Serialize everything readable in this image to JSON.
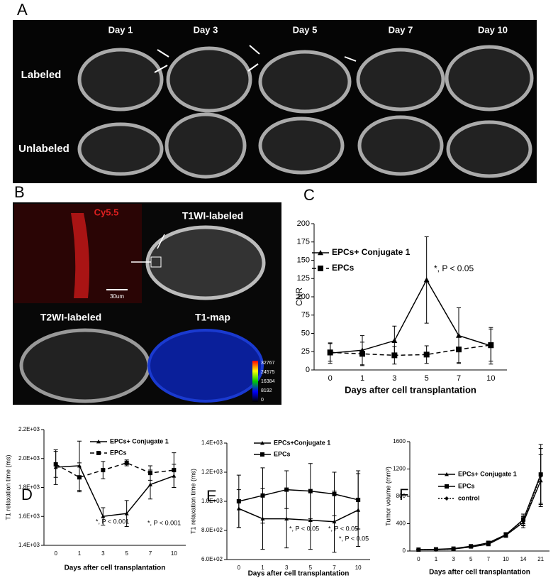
{
  "panel_a": {
    "label": "A",
    "columns": [
      "Day 1",
      "Day 3",
      "Day 5",
      "Day 7",
      "Day 10"
    ],
    "rows": [
      "Labeled",
      "Unlabeled"
    ]
  },
  "panel_b": {
    "label": "B",
    "quadrants": [
      "Cy5.5",
      "T1WI-labeled",
      "T2WI-labeled",
      "T1-map"
    ],
    "scale_bar": "30um",
    "colorbar": [
      "32767",
      "24575",
      "16384",
      "8192",
      "0"
    ]
  },
  "chart_data": [
    {
      "type": "line",
      "label": "C",
      "y_label": "CNR",
      "x_label": "Days after cell transplantation",
      "categories": [
        "0",
        "1",
        "3",
        "5",
        "7",
        "10"
      ],
      "ylim": [
        0,
        200
      ],
      "yticks": [
        0,
        25,
        50,
        75,
        100,
        125,
        150,
        175,
        200
      ],
      "series": [
        {
          "name": "EPCs+ Conjugate 1",
          "color": "#000000",
          "marker": "triangle",
          "line_style": "solid",
          "values": [
            23,
            27,
            40,
            123,
            47,
            33
          ],
          "errors": [
            14,
            20,
            20,
            59,
            38,
            25
          ]
        },
        {
          "name": "EPCs",
          "color": "#000000",
          "marker": "square",
          "line_style": "dashed",
          "values": [
            24,
            22,
            20,
            21,
            28,
            34
          ],
          "errors": [
            12,
            16,
            12,
            12,
            18,
            22
          ]
        }
      ],
      "annotations": [
        "*, P < 0.05"
      ]
    },
    {
      "type": "line",
      "label": "D",
      "y_label": "T1 relaxation time (ms)",
      "x_label": "Days after cell transplantation",
      "categories": [
        "0",
        "1",
        "3",
        "5",
        "7",
        "10"
      ],
      "ylim": [
        1400,
        2200
      ],
      "yticks": [
        {
          "value": 1400,
          "label": "1.4E+03"
        },
        {
          "value": 1600,
          "label": "1.6E+03"
        },
        {
          "value": 1800,
          "label": "1.8E+03"
        },
        {
          "value": 2000,
          "label": "2.0E+03"
        },
        {
          "value": 2200,
          "label": "2.2E+03"
        }
      ],
      "series": [
        {
          "name": "EPCs+ Conjugate 1",
          "color": "#000000",
          "marker": "triangle",
          "line_style": "solid",
          "values": [
            1940,
            1950,
            1600,
            1620,
            1820,
            1880
          ],
          "errors": [
            120,
            170,
            60,
            90,
            100,
            80
          ]
        },
        {
          "name": "EPCs",
          "color": "#000000",
          "marker": "square",
          "line_style": "dashed",
          "values": [
            1960,
            1870,
            1920,
            1970,
            1900,
            1920
          ],
          "errors": [
            90,
            100,
            60,
            20,
            50,
            120
          ]
        }
      ],
      "annotations": [
        "*, P < 0.001",
        "*, P < 0.001"
      ]
    },
    {
      "type": "line",
      "label": "E",
      "y_label": "T1 relaxation time (ms)",
      "x_label": "Days after cell transplantation",
      "categories": [
        "0",
        "1",
        "3",
        "5",
        "7",
        "10"
      ],
      "ylim": [
        600,
        1400
      ],
      "yticks": [
        {
          "value": 600,
          "label": "6.0E+02"
        },
        {
          "value": 800,
          "label": "8.0E+02"
        },
        {
          "value": 1000,
          "label": "1.0E+03"
        },
        {
          "value": 1200,
          "label": "1.2E+03"
        },
        {
          "value": 1400,
          "label": "1.4E+03"
        }
      ],
      "series": [
        {
          "name": "EPCs+Conjugate 1",
          "color": "#000000",
          "marker": "triangle",
          "line_style": "solid",
          "values": [
            950,
            880,
            880,
            870,
            860,
            940
          ],
          "errors": [
            130,
            210,
            200,
            200,
            210,
            250
          ]
        },
        {
          "name": "EPCs",
          "color": "#000000",
          "marker": "square",
          "line_style": "solid",
          "values": [
            1000,
            1040,
            1080,
            1070,
            1050,
            1010
          ],
          "errors": [
            180,
            190,
            130,
            190,
            150,
            200
          ]
        }
      ],
      "annotations": [
        "*, P < 0.05",
        "*, P < 0.05",
        "*, P < 0.05"
      ]
    },
    {
      "type": "line",
      "label": "F",
      "y_label": "Tumor volume (mm³)",
      "x_label": "Days after cell transplantation",
      "categories": [
        "0",
        "1",
        "3",
        "5",
        "7",
        "10",
        "14",
        "21"
      ],
      "ylim": [
        0,
        1600
      ],
      "yticks": [
        0,
        400,
        800,
        1200,
        1600
      ],
      "series": [
        {
          "name": "EPCs+ Conjugate 1",
          "color": "#000000",
          "marker": "triangle",
          "line_style": "solid",
          "values": [
            20,
            20,
            30,
            60,
            100,
            230,
            420,
            1030
          ],
          "errors": [
            5,
            5,
            8,
            15,
            25,
            30,
            80,
            380
          ]
        },
        {
          "name": "EPCs",
          "color": "#000000",
          "marker": "square",
          "line_style": "solid",
          "values": [
            20,
            25,
            35,
            70,
            120,
            240,
            460,
            1120
          ],
          "errors": [
            5,
            5,
            8,
            15,
            25,
            30,
            80,
            440
          ]
        },
        {
          "name": "control",
          "color": "#000000",
          "marker": "diamond",
          "line_style": "dotted",
          "values": [
            20,
            20,
            30,
            65,
            110,
            230,
            440,
            1100
          ],
          "errors": [
            5,
            5,
            8,
            15,
            25,
            30,
            70,
            400
          ]
        }
      ],
      "annotations": []
    }
  ]
}
